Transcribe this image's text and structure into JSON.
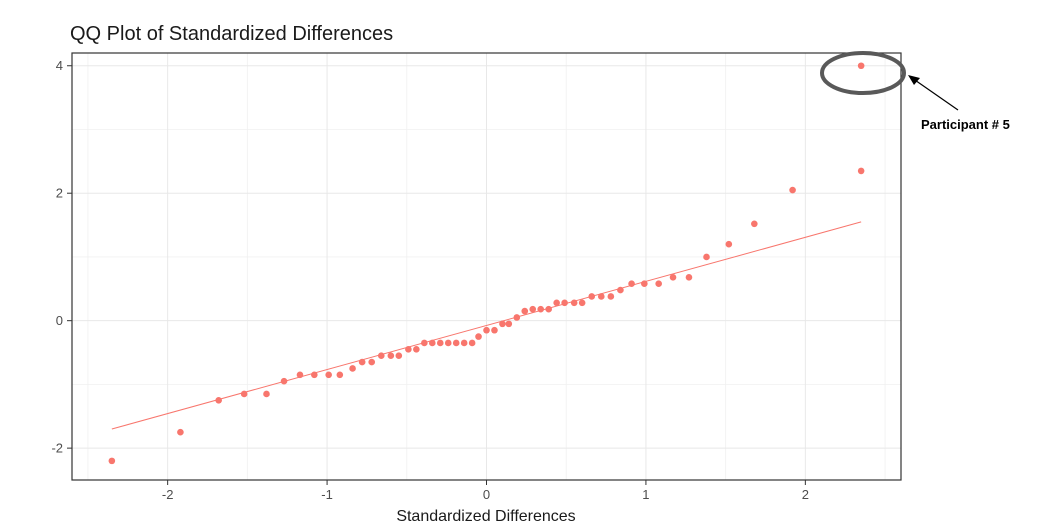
{
  "chart_data": {
    "type": "scatter",
    "title": "QQ Plot of Standardized Differences",
    "xlabel": "Standardized Differences",
    "ylabel": "",
    "xlim": [
      -2.6,
      2.6
    ],
    "ylim": [
      -2.5,
      4.2
    ],
    "x_ticks": [
      -2,
      -1,
      0,
      1,
      2
    ],
    "x_tick_labels": [
      "-2",
      "-1",
      "0",
      "1",
      "2"
    ],
    "y_ticks": [
      -2,
      0,
      2,
      4
    ],
    "y_tick_labels": [
      "-2",
      "0",
      "2",
      "4"
    ],
    "grid": true,
    "point_color": "#F8766D",
    "line_color": "#F8766D",
    "points": [
      [
        -2.35,
        -2.2
      ],
      [
        -1.92,
        -1.75
      ],
      [
        -1.68,
        -1.25
      ],
      [
        -1.52,
        -1.15
      ],
      [
        -1.38,
        -1.15
      ],
      [
        -1.27,
        -0.95
      ],
      [
        -1.17,
        -0.85
      ],
      [
        -1.08,
        -0.85
      ],
      [
        -0.99,
        -0.85
      ],
      [
        -0.92,
        -0.85
      ],
      [
        -0.84,
        -0.75
      ],
      [
        -0.78,
        -0.65
      ],
      [
        -0.72,
        -0.65
      ],
      [
        -0.66,
        -0.55
      ],
      [
        -0.6,
        -0.55
      ],
      [
        -0.55,
        -0.55
      ],
      [
        -0.49,
        -0.45
      ],
      [
        -0.44,
        -0.45
      ],
      [
        -0.39,
        -0.35
      ],
      [
        -0.34,
        -0.35
      ],
      [
        -0.29,
        -0.35
      ],
      [
        -0.24,
        -0.35
      ],
      [
        -0.19,
        -0.35
      ],
      [
        -0.14,
        -0.35
      ],
      [
        -0.09,
        -0.35
      ],
      [
        -0.05,
        -0.25
      ],
      [
        0.0,
        -0.15
      ],
      [
        0.05,
        -0.15
      ],
      [
        0.1,
        -0.05
      ],
      [
        0.14,
        -0.05
      ],
      [
        0.19,
        0.05
      ],
      [
        0.24,
        0.15
      ],
      [
        0.29,
        0.18
      ],
      [
        0.34,
        0.18
      ],
      [
        0.39,
        0.18
      ],
      [
        0.44,
        0.28
      ],
      [
        0.49,
        0.28
      ],
      [
        0.55,
        0.28
      ],
      [
        0.6,
        0.28
      ],
      [
        0.66,
        0.38
      ],
      [
        0.72,
        0.38
      ],
      [
        0.78,
        0.38
      ],
      [
        0.84,
        0.48
      ],
      [
        0.91,
        0.58
      ],
      [
        0.99,
        0.58
      ],
      [
        1.08,
        0.58
      ],
      [
        1.17,
        0.68
      ],
      [
        1.27,
        0.68
      ],
      [
        1.38,
        1.0
      ],
      [
        1.52,
        1.2
      ],
      [
        1.68,
        1.52
      ],
      [
        1.92,
        2.05
      ],
      [
        2.35,
        2.35
      ],
      [
        2.35,
        4.0
      ]
    ],
    "reference_line": {
      "x": [
        -2.35,
        2.35
      ],
      "y": [
        -1.7,
        1.55
      ]
    },
    "annotation": {
      "text": "Participant # 5",
      "point": [
        2.35,
        4.0
      ]
    }
  }
}
